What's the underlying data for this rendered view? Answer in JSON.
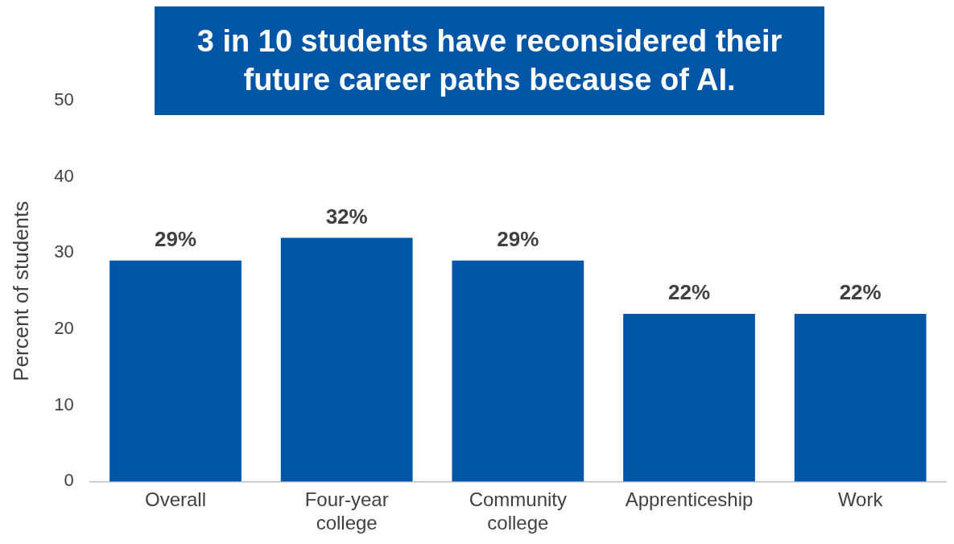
{
  "chart_data": {
    "type": "bar",
    "title": "3 in 10 students have reconsidered their future career paths because of AI.",
    "ylabel": "Percent of students",
    "categories": [
      "Overall",
      "Four-year college",
      "Community college",
      "Apprenticeship",
      "Work"
    ],
    "values": [
      29,
      32,
      29,
      22,
      22
    ],
    "color": "#0056a6",
    "value_labels": [
      "29%",
      "32%",
      "29%",
      "22%",
      "22%"
    ],
    "ylim": [
      0,
      50
    ],
    "yticks": [
      0,
      10,
      20,
      30,
      40,
      50
    ],
    "grid": false,
    "legend": false
  }
}
